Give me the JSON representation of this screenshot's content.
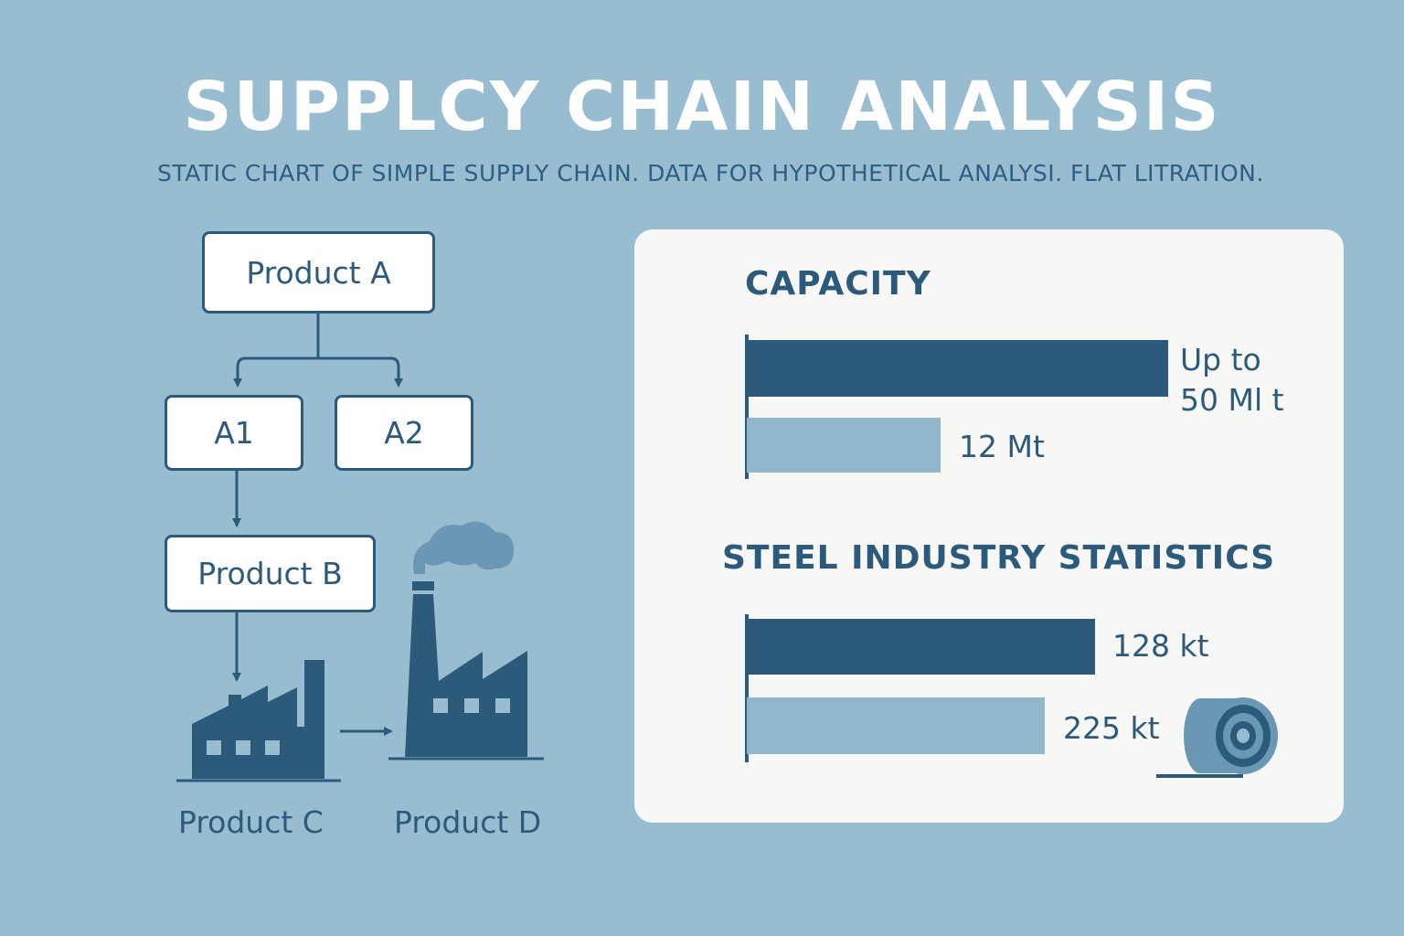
{
  "header": {
    "title": "SUPPLCY CHAIN ANALYSIS",
    "subtitle": "STATIC CHART OF SIMPLE SUPPLY CHAIN. DATA FOR HYPOTHETICAL ANALYSI. FLAT LITRATION."
  },
  "flow": {
    "nodes": {
      "product_a": "Product A",
      "a1": "A1",
      "a2": "A2",
      "product_b": "Product B",
      "product_c": "Product C",
      "product_d": "Product D"
    },
    "icons": [
      "factory-icon",
      "factory-smoke-icon"
    ]
  },
  "panel": {
    "capacity": {
      "title": "CAPACITY",
      "bars": [
        {
          "label_line1": "Up to",
          "label_line2": "50 Ml t",
          "value_mt": 50
        },
        {
          "label": "12 Mt",
          "value_mt": 12
        }
      ]
    },
    "steel": {
      "title": "STEEL INDUSTRY STATISTICS",
      "bars": [
        {
          "label": "128 kt",
          "value_kt": 128
        },
        {
          "label": "225 kt",
          "value_kt": 225
        }
      ],
      "icon": "steel-coil-icon"
    }
  },
  "colors": {
    "background": "#98bcd0",
    "dark_blue": "#2c5a7b",
    "light_blue": "#92b6cb",
    "panel": "#f7f7f5",
    "smoke": "#6a97b4"
  }
}
